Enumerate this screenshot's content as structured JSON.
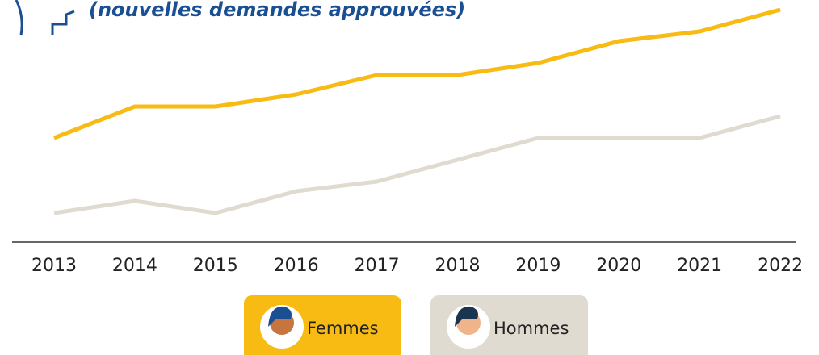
{
  "chart_data": {
    "type": "line",
    "subtitle": "(nouvelles demandes approuvées)",
    "categories": [
      "2013",
      "2014",
      "2015",
      "2016",
      "2017",
      "2018",
      "2019",
      "2020",
      "2021",
      "2022"
    ],
    "series": [
      {
        "name": "Femmes",
        "color": "#f7bb14",
        "values": [
          43,
          56,
          56,
          61,
          69,
          69,
          74,
          83,
          87,
          96
        ]
      },
      {
        "name": "Hommes",
        "color": "#e0dbd0",
        "values": [
          12,
          17,
          12,
          21,
          25,
          34,
          43,
          43,
          43,
          52
        ]
      }
    ],
    "ylim": [
      0,
      100
    ]
  }
}
